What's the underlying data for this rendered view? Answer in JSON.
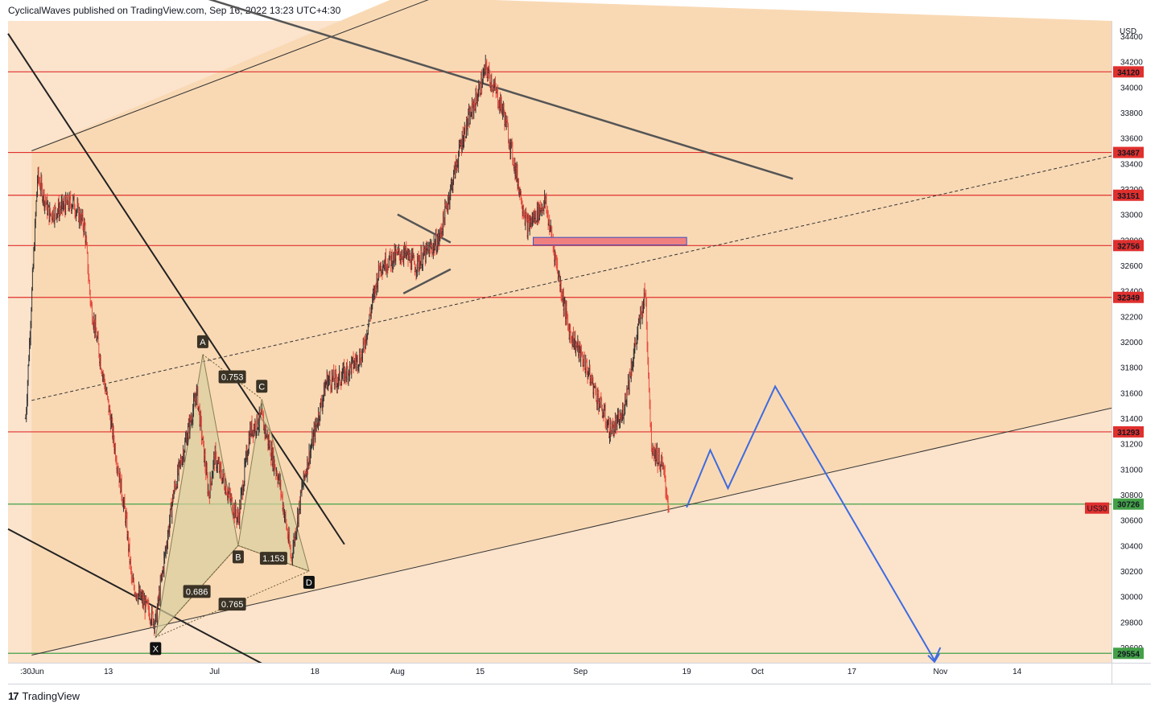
{
  "header": {
    "text": "CyclicalWaves published on TradingView.com, Sep 16, 2022 13:23 UTC+4:30"
  },
  "footer": {
    "logo": "17",
    "brand": "TradingView"
  },
  "colors": {
    "background_outer": "#fbe3cc",
    "background_channel": "#f9d9b4",
    "resistance": "#e0302e",
    "support": "#43a047",
    "projection": "#3d6be0",
    "trendline": "#333333",
    "candle_up": "#333333",
    "candle_down": "#e84a3e",
    "harmonic_fill": "#d8cfa0"
  },
  "chart_data": {
    "type": "candlestick",
    "symbol": "US30",
    "currency": "USD",
    "y_axis": {
      "unit": "USD",
      "range": [
        29480,
        34520
      ],
      "ticks": [
        29600,
        29800,
        30000,
        30200,
        30400,
        30600,
        30800,
        31000,
        31200,
        31400,
        31600,
        31800,
        32000,
        32200,
        32400,
        32600,
        32800,
        33000,
        33200,
        33400,
        33600,
        33800,
        34000,
        34200,
        34400
      ]
    },
    "x_axis": {
      "range": [
        "2022-05-27",
        "2022-11-30"
      ],
      "ticks": [
        {
          "label": ":30",
          "date": "2022-05-30"
        },
        {
          "label": "Jun",
          "date": "2022-06-01"
        },
        {
          "label": "13",
          "date": "2022-06-13"
        },
        {
          "label": "Jul",
          "date": "2022-07-01"
        },
        {
          "label": "18",
          "date": "2022-07-18"
        },
        {
          "label": "Aug",
          "date": "2022-08-01"
        },
        {
          "label": "15",
          "date": "2022-08-15"
        },
        {
          "label": "Sep",
          "date": "2022-09-01"
        },
        {
          "label": "19",
          "date": "2022-09-19"
        },
        {
          "label": "Oct",
          "date": "2022-10-01"
        },
        {
          "label": "17",
          "date": "2022-10-17"
        },
        {
          "label": "Nov",
          "date": "2022-11-01"
        },
        {
          "label": "14",
          "date": "2022-11-14"
        }
      ]
    },
    "price_path": [
      [
        "2022-05-30",
        31400
      ],
      [
        "2022-06-01",
        33300
      ],
      [
        "2022-06-03",
        33000
      ],
      [
        "2022-06-07",
        33100
      ],
      [
        "2022-06-09",
        32900
      ],
      [
        "2022-06-10",
        32300
      ],
      [
        "2022-06-13",
        31500
      ],
      [
        "2022-06-16",
        30600
      ],
      [
        "2022-06-17",
        30100
      ],
      [
        "2022-06-21",
        29800
      ],
      [
        "2022-06-24",
        30800
      ],
      [
        "2022-06-28",
        31600
      ],
      [
        "2022-06-30",
        30800
      ],
      [
        "2022-07-01",
        31100
      ],
      [
        "2022-07-05",
        30600
      ],
      [
        "2022-07-07",
        31300
      ],
      [
        "2022-07-09",
        31400
      ],
      [
        "2022-07-12",
        30900
      ],
      [
        "2022-07-14",
        30300
      ],
      [
        "2022-07-16",
        30900
      ],
      [
        "2022-07-20",
        31700
      ],
      [
        "2022-07-22",
        31700
      ],
      [
        "2022-07-26",
        31900
      ],
      [
        "2022-07-29",
        32600
      ],
      [
        "2022-08-02",
        32700
      ],
      [
        "2022-08-04",
        32600
      ],
      [
        "2022-08-08",
        32800
      ],
      [
        "2022-08-10",
        33200
      ],
      [
        "2022-08-12",
        33600
      ],
      [
        "2022-08-15",
        34000
      ],
      [
        "2022-08-16",
        34150
      ],
      [
        "2022-08-19",
        33800
      ],
      [
        "2022-08-23",
        32900
      ],
      [
        "2022-08-26",
        33100
      ],
      [
        "2022-08-30",
        32100
      ],
      [
        "2022-09-02",
        31800
      ],
      [
        "2022-09-06",
        31300
      ],
      [
        "2022-09-08",
        31400
      ],
      [
        "2022-09-12",
        32400
      ],
      [
        "2022-09-13",
        31200
      ],
      [
        "2022-09-15",
        31000
      ],
      [
        "2022-09-16",
        30700
      ]
    ],
    "horizontal_levels": {
      "resistance": [
        34120,
        33487,
        33151,
        32756,
        32349,
        31293
      ],
      "support": [
        30726,
        29554
      ]
    },
    "last_price_label": "US30",
    "resistance_zone": {
      "x1": "2022-08-24",
      "x2": "2022-09-19",
      "y1": 32760,
      "y2": 32820
    },
    "projection_path": [
      [
        "2022-09-19",
        30700
      ],
      [
        "2022-09-23",
        31150
      ],
      [
        "2022-09-26",
        30850
      ],
      [
        "2022-10-04",
        31650
      ],
      [
        "2022-10-31",
        29500
      ],
      [
        "2022-11-01",
        29600
      ]
    ],
    "harmonic_pattern": {
      "points": [
        {
          "label": "X",
          "date": "2022-06-21",
          "price": 29680
        },
        {
          "label": "A",
          "date": "2022-06-29",
          "price": 31900
        },
        {
          "label": "B",
          "date": "2022-07-05",
          "price": 30400
        },
        {
          "label": "C",
          "date": "2022-07-09",
          "price": 31550
        },
        {
          "label": "D",
          "date": "2022-07-17",
          "price": 30200
        }
      ],
      "ratios": [
        {
          "label": "0.753",
          "between": [
            "A",
            "C"
          ]
        },
        {
          "label": "1.153",
          "between": [
            "B",
            "D"
          ]
        },
        {
          "label": "0.686",
          "between": [
            "X",
            "B"
          ]
        },
        {
          "label": "0.765",
          "between": [
            "X",
            "D"
          ]
        }
      ]
    }
  }
}
